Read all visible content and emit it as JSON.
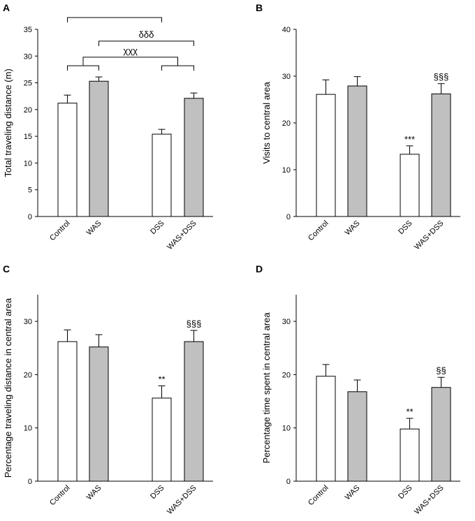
{
  "figure": {
    "colors": {
      "white_bar": "#ffffff",
      "gray_bar": "#c0c0c0",
      "stroke": "#000000"
    }
  },
  "chart_data": [
    {
      "panel": "A",
      "type": "bar",
      "ylabel": "Total traveling distance (m)",
      "ylim": [
        0,
        35
      ],
      "yticks": [
        0,
        5,
        10,
        15,
        20,
        25,
        30,
        35
      ],
      "categories": [
        "Control",
        "WAS",
        "DSS",
        "WAS+DSS"
      ],
      "values": [
        21.2,
        25.3,
        15.4,
        22.1
      ],
      "errors": [
        1.5,
        0.8,
        0.9,
        1.0
      ],
      "fills": [
        "white",
        "gray",
        "white",
        "gray"
      ],
      "bar_annotations": [
        "",
        "",
        "",
        ""
      ],
      "brackets": [
        {
          "type": "top",
          "from": 0,
          "to": 2,
          "level": 37.2,
          "label": ""
        },
        {
          "type": "top",
          "from": 1,
          "to": 3,
          "level": 32.8,
          "label": "δδδ"
        },
        {
          "type": "pair",
          "left": [
            0,
            1
          ],
          "right": [
            2,
            3
          ],
          "level": 29.8,
          "pair_level": 28.2,
          "label": "χχχ"
        }
      ]
    },
    {
      "panel": "B",
      "type": "bar",
      "ylabel": "Visits to central area",
      "ylim": [
        0,
        40
      ],
      "yticks": [
        0,
        10,
        20,
        30,
        40
      ],
      "categories": [
        "Control",
        "WAS",
        "DSS",
        "WAS+DSS"
      ],
      "values": [
        26.1,
        27.9,
        13.3,
        26.2
      ],
      "errors": [
        3.1,
        2.0,
        1.8,
        2.2
      ],
      "fills": [
        "white",
        "gray",
        "white",
        "gray"
      ],
      "bar_annotations": [
        "",
        "",
        "***",
        "§§§"
      ],
      "brackets": []
    },
    {
      "panel": "C",
      "type": "bar",
      "ylabel": "Percentage traveling distance in central area",
      "ylim": [
        0,
        35
      ],
      "yticks": [
        0,
        10,
        20,
        30
      ],
      "categories": [
        "Control",
        "WAS",
        "DSS",
        "WAS+DSS"
      ],
      "values": [
        26.2,
        25.2,
        15.6,
        26.2
      ],
      "errors": [
        2.2,
        2.3,
        2.3,
        2.1
      ],
      "fills": [
        "white",
        "gray",
        "white",
        "gray"
      ],
      "bar_annotations": [
        "",
        "",
        "**",
        "§§§"
      ],
      "brackets": []
    },
    {
      "panel": "D",
      "type": "bar",
      "ylabel": "Percentage time spent in central area",
      "ylim": [
        0,
        35
      ],
      "yticks": [
        0,
        10,
        20,
        30
      ],
      "categories": [
        "Control",
        "WAS",
        "DSS",
        "WAS+DSS"
      ],
      "values": [
        19.7,
        16.8,
        9.8,
        17.6
      ],
      "errors": [
        2.2,
        2.2,
        2.0,
        1.9
      ],
      "fills": [
        "white",
        "gray",
        "white",
        "gray"
      ],
      "bar_annotations": [
        "",
        "",
        "**",
        "§§"
      ],
      "brackets": []
    }
  ]
}
